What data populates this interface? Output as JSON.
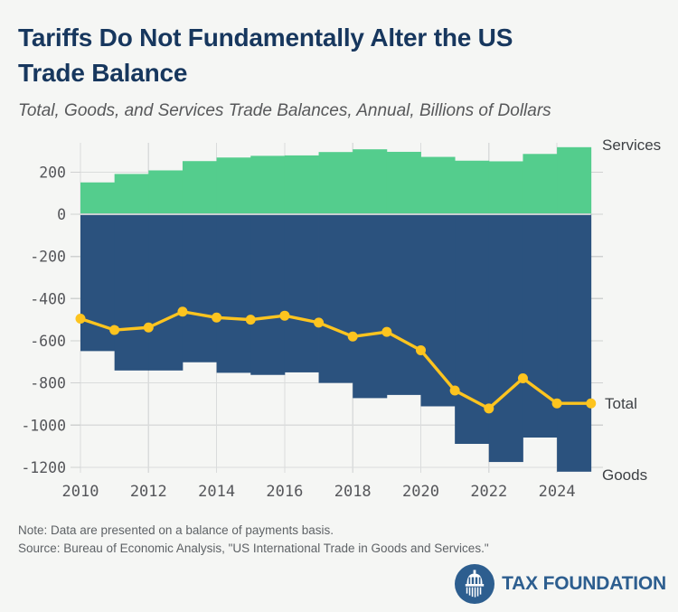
{
  "chart_data": {
    "type": "combo_bar_line",
    "title": "Tariffs Do Not Fundamentally Alter the US Trade Balance",
    "title_lines": [
      "Tariffs Do Not Fundamentally Alter the US",
      "Trade Balance"
    ],
    "subtitle": "Total, Goods, and Services Trade Balances, Annual, Billions of Dollars",
    "bar_years": [
      2010,
      2011,
      2012,
      2013,
      2014,
      2015,
      2016,
      2017,
      2018,
      2019,
      2020,
      2021,
      2022,
      2023,
      2024
    ],
    "line_years": [
      2010,
      2011,
      2012,
      2013,
      2014,
      2015,
      2016,
      2017,
      2018,
      2019,
      2020,
      2021,
      2022,
      2023,
      2024,
      2025
    ],
    "series": [
      {
        "name": "Services",
        "type": "bar",
        "color": "#54cd8d",
        "values": [
          151,
          191,
          208,
          252,
          269,
          277,
          279,
          295,
          308,
          296,
          272,
          254,
          251,
          286,
          318
        ]
      },
      {
        "name": "Goods",
        "type": "bar",
        "color": "#2b527e",
        "values": [
          -649,
          -741,
          -741,
          -702,
          -752,
          -762,
          -750,
          -800,
          -872,
          -857,
          -911,
          -1089,
          -1175,
          -1059,
          -1221
        ]
      },
      {
        "name": "Total",
        "type": "line",
        "color": "#fdc41f",
        "values": [
          -495,
          -549,
          -537,
          -462,
          -490,
          -500,
          -481,
          -514,
          -580,
          -558,
          -645,
          -836,
          -921,
          -778,
          -897,
          -897
        ]
      }
    ],
    "x_tick_values": [
      2010,
      2012,
      2014,
      2016,
      2018,
      2020,
      2022,
      2024
    ],
    "x_tick_labels": [
      "2010",
      "2012",
      "2014",
      "2016",
      "2018",
      "2020",
      "2022",
      "2024"
    ],
    "y_tick_values": [
      200,
      0,
      -200,
      -400,
      -600,
      -800,
      -1000,
      -1200
    ],
    "y_tick_labels": [
      "200",
      "0",
      "-200",
      "-400",
      "-600",
      "-800",
      "-1000",
      "-1200"
    ],
    "ylim": [
      -1230,
      340
    ],
    "xlabel": "",
    "ylabel": "",
    "grid": true,
    "legend_position": "right-edge-labels",
    "edge_labels": {
      "services": "Services",
      "total": "Total",
      "goods": "Goods"
    }
  },
  "footer": {
    "note": "Note: Data are presented on a balance of payments basis.",
    "source": "Source: Bureau of Economic Analysis, \"US International Trade in Goods and Services.\"",
    "logo_text": "TAX FOUNDATION"
  },
  "colors": {
    "background": "#f5f6f4",
    "title": "#17375e",
    "subtitle": "#57585a",
    "grid": "#dadcdc",
    "tick": "#cfd1d1",
    "zero_line": "#c9ced1",
    "axis_label": "#55565a",
    "series_label": "#3e4145",
    "services_green": "#54cd8d",
    "goods_blue": "#2b527e",
    "total_yellow": "#fdc41f",
    "note_text": "#5e6266",
    "logo_blue": "#2d5e8f"
  }
}
